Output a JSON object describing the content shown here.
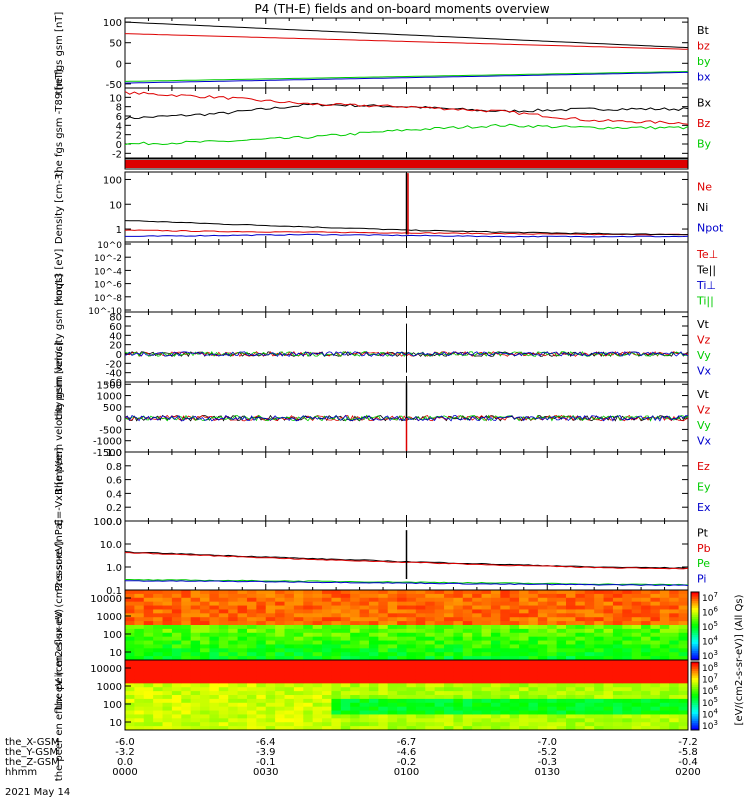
{
  "title": "P4 (TH-E) fields and on-board moments overview",
  "colors": {
    "black": "#000000",
    "red": "#dd0000",
    "green": "#00cc00",
    "blue": "#0000cc",
    "bg": "#ffffff"
  },
  "x_axis": {
    "tick_labels": [
      "0000",
      "0030",
      "0100",
      "0130",
      "0200"
    ],
    "rows": [
      {
        "label": "the_X-GSM",
        "values": [
          "-6.0",
          "-6.4",
          "-6.7",
          "-7.0",
          "-7.2"
        ]
      },
      {
        "label": "the_Y-GSM",
        "values": [
          "-3.2",
          "-3.9",
          "-4.6",
          "-5.2",
          "-5.8"
        ]
      },
      {
        "label": "the_Z-GSM",
        "values": [
          "0.0",
          "-0.1",
          "-0.2",
          "-0.3",
          "-0.4"
        ]
      },
      {
        "label": "hhmm",
        "values": [
          "0000",
          "0030",
          "0100",
          "0130",
          "0200"
        ]
      }
    ],
    "date": "2021 May 14"
  },
  "colorbar": {
    "label": "[eV/(cm2-s-sr-eV)] (All Qs)",
    "ticks_top": [
      "10^7",
      "10^6",
      "10^5",
      "10^4",
      "10^3"
    ],
    "ticks_bottom": [
      "10^8",
      "10^7",
      "10^6",
      "10^5",
      "10^4",
      "10^3"
    ]
  },
  "chart_data": [
    {
      "type": "line",
      "ylabel": "the fgs gsm [nT]",
      "ylim": [
        -60,
        110
      ],
      "yticks": [
        "100",
        "50",
        "0",
        "-50"
      ],
      "ytick_values": [
        100,
        50,
        0,
        -50
      ],
      "series": [
        {
          "name": "Bt",
          "color": "black",
          "x": [
            0,
            120
          ],
          "y": [
            100,
            38
          ]
        },
        {
          "name": "bz",
          "color": "red",
          "x": [
            0,
            120
          ],
          "y": [
            72,
            34
          ]
        },
        {
          "name": "by",
          "color": "green",
          "x": [
            0,
            120
          ],
          "y": [
            -44,
            -20
          ]
        },
        {
          "name": "bx",
          "color": "blue",
          "x": [
            0,
            120
          ],
          "y": [
            -48,
            -22
          ]
        }
      ]
    },
    {
      "type": "line",
      "ylabel": "the fgs gsm -T89 [nT]",
      "ylim": [
        -3,
        12
      ],
      "yticks": [
        "10",
        "8",
        "6",
        "4",
        "2",
        "0",
        "-2"
      ],
      "ytick_values": [
        10,
        8,
        6,
        4,
        2,
        0,
        -2
      ],
      "series": [
        {
          "name": "Bx",
          "color": "black",
          "x": [
            0,
            20,
            40,
            60,
            80,
            100,
            120
          ],
          "y": [
            5.5,
            6.5,
            8.5,
            8.0,
            7.0,
            7.5,
            7.5
          ]
        },
        {
          "name": "Bz",
          "color": "red",
          "x": [
            0,
            20,
            40,
            60,
            80,
            100,
            120
          ],
          "y": [
            11,
            10,
            8.5,
            8.0,
            7.0,
            5.0,
            4.5
          ]
        },
        {
          "name": "By",
          "color": "green",
          "x": [
            0,
            20,
            40,
            60,
            80,
            100,
            120
          ],
          "y": [
            0,
            0.5,
            1.5,
            3.0,
            4.0,
            3.5,
            3.5
          ]
        }
      ]
    },
    {
      "type": "line",
      "ylabel": "Density [cm-3]",
      "ylim": [
        0.3,
        200
      ],
      "yticks": [
        "100",
        "10",
        "1"
      ],
      "ytick_values": [
        100,
        10,
        1
      ],
      "series": [
        {
          "name": "Ne",
          "color": "red",
          "x": [
            0,
            20,
            40,
            60,
            80,
            100,
            120
          ],
          "y": [
            0.9,
            0.8,
            0.75,
            0.7,
            0.65,
            0.6,
            0.6
          ]
        },
        {
          "name": "Ni",
          "color": "black",
          "x": [
            0,
            20,
            40,
            60,
            80,
            100,
            120
          ],
          "y": [
            2.2,
            1.6,
            1.2,
            0.9,
            0.75,
            0.65,
            0.6
          ]
        },
        {
          "name": "Npot",
          "color": "blue",
          "x": [
            0,
            20,
            40,
            60,
            80,
            100,
            120
          ],
          "y": [
            0.5,
            0.55,
            0.6,
            0.55,
            0.5,
            0.5,
            0.5
          ]
        }
      ]
    },
    {
      "type": "line",
      "ylabel": "moqt3 [eV]",
      "ylim": [
        1e-10,
        10
      ],
      "yticks": [
        "10^0",
        "10^-2",
        "10^-4",
        "10^-6",
        "10^-8",
        "10^-10"
      ],
      "series": [
        {
          "name": "Te⊥",
          "color": "red"
        },
        {
          "name": "Te||",
          "color": "black"
        },
        {
          "name": "Ti⊥",
          "color": "blue"
        },
        {
          "name": "Ti||",
          "color": "green"
        }
      ]
    },
    {
      "type": "line",
      "ylabel": "the peim velocity gsm [km/s]",
      "ylim": [
        -60,
        90
      ],
      "yticks": [
        "80",
        "60",
        "40",
        "20",
        "0",
        "-20",
        "-40",
        "-60"
      ],
      "ytick_values": [
        80,
        60,
        40,
        20,
        0,
        -20,
        -40,
        -60
      ],
      "series": [
        {
          "name": "Vt",
          "color": "black"
        },
        {
          "name": "Vz",
          "color": "red"
        },
        {
          "name": "Vy",
          "color": "green"
        },
        {
          "name": "Vx",
          "color": "blue"
        }
      ]
    },
    {
      "type": "line",
      "ylabel": "the peem velocity gsm [km/s]",
      "ylim": [
        -1500,
        1600
      ],
      "yticks": [
        "1500",
        "1000",
        "500",
        "0",
        "-500",
        "-1000",
        "-1500"
      ],
      "ytick_values": [
        1500,
        1000,
        500,
        0,
        -500,
        -1000,
        -1500
      ],
      "series": [
        {
          "name": "Vt",
          "color": "black"
        },
        {
          "name": "Vz",
          "color": "red"
        },
        {
          "name": "Vy",
          "color": "green"
        },
        {
          "name": "Vx",
          "color": "blue"
        }
      ]
    },
    {
      "type": "line",
      "ylabel": "E=-VxB [mV/m]",
      "ylim": [
        0,
        1
      ],
      "yticks": [
        "1.0",
        "0.8",
        "0.6",
        "0.4",
        "0.2",
        "0.0"
      ],
      "ytick_values": [
        1.0,
        0.8,
        0.6,
        0.4,
        0.2,
        0.0
      ],
      "series": [
        {
          "name": "Ez",
          "color": "red"
        },
        {
          "name": "Ey",
          "color": "green"
        },
        {
          "name": "Ex",
          "color": "blue"
        }
      ]
    },
    {
      "type": "line",
      "ylabel": "Pressure [nPa]",
      "ylim": [
        0.1,
        100
      ],
      "yticks": [
        "100.0",
        "10.0",
        "1.0",
        "0.1"
      ],
      "ytick_values": [
        100,
        10,
        1,
        0.1
      ],
      "series": [
        {
          "name": "Pt",
          "color": "black",
          "x": [
            0,
            20,
            40,
            60,
            80,
            100,
            120
          ],
          "y": [
            4.5,
            3.2,
            2.3,
            1.7,
            1.3,
            1.0,
            0.9
          ]
        },
        {
          "name": "Pb",
          "color": "red",
          "x": [
            0,
            20,
            40,
            60,
            80,
            100,
            120
          ],
          "y": [
            4.2,
            3.0,
            2.1,
            1.6,
            1.2,
            0.95,
            0.85
          ]
        },
        {
          "name": "Pe",
          "color": "green",
          "x": [
            0,
            20,
            40,
            60,
            80,
            100,
            120
          ],
          "y": [
            0.28,
            0.26,
            0.24,
            0.22,
            0.2,
            0.18,
            0.17
          ]
        },
        {
          "name": "Pi",
          "color": "blue",
          "x": [
            0,
            20,
            40,
            60,
            80,
            100,
            120
          ],
          "y": [
            0.25,
            0.24,
            0.22,
            0.2,
            0.18,
            0.17,
            0.16
          ]
        }
      ]
    },
    {
      "type": "heatmap",
      "ylabel": "the peir en eflux eV (cm2-s-sr-eV)",
      "yticks": [
        "10000",
        "1000",
        "100",
        "10"
      ]
    },
    {
      "type": "heatmap",
      "ylabel": "the peer en eflux eV (cm2-s-sr-eV)",
      "yticks": [
        "10000",
        "1000",
        "100",
        "10"
      ]
    }
  ]
}
